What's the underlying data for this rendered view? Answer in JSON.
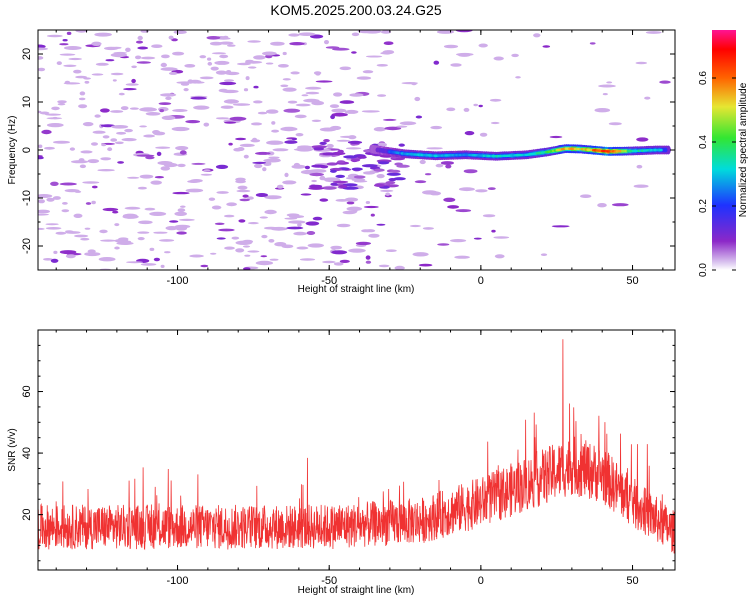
{
  "title": "KOM5.2025.200.03.24.G25",
  "chart_data": [
    {
      "type": "heatmap",
      "xlabel": "Height of straight line (km)",
      "ylabel": "Frequency (Hz)",
      "xlim": [
        -146,
        64
      ],
      "ylim": [
        -25,
        25
      ],
      "xticks": [
        -100,
        -50,
        0,
        50
      ],
      "yticks": [
        -20,
        -10,
        0,
        10,
        20
      ],
      "colorbar": {
        "label": "Normalized spectral amplitude",
        "range": [
          0,
          0.75
        ],
        "ticks": [
          0.0,
          0.2,
          0.4,
          0.6
        ],
        "tick_labels": [
          "0.0",
          "0.2",
          "0.4",
          "0.6"
        ],
        "colors": [
          "#dcc8f0",
          "#8c28c8",
          "#1e32ff",
          "#00dcdc",
          "#32e632",
          "#e6e632",
          "#ff6400",
          "#ff0000",
          "#ff1493"
        ]
      },
      "band": {
        "description_points": [
          {
            "x": -36,
            "f": 0.2,
            "amp": 0.16
          },
          {
            "x": -25,
            "f": -0.8,
            "amp": 0.28
          },
          {
            "x": -15,
            "f": -1.2,
            "amp": 0.3
          },
          {
            "x": -5,
            "f": -1.0,
            "amp": 0.26
          },
          {
            "x": 5,
            "f": -1.3,
            "amp": 0.33
          },
          {
            "x": 15,
            "f": -1.0,
            "amp": 0.3
          },
          {
            "x": 22,
            "f": -0.4,
            "amp": 0.38
          },
          {
            "x": 28,
            "f": 0.3,
            "amp": 0.55
          },
          {
            "x": 33,
            "f": 0.2,
            "amp": 0.5
          },
          {
            "x": 42,
            "f": -0.3,
            "amp": 0.7
          },
          {
            "x": 50,
            "f": -0.2,
            "amp": 0.35
          },
          {
            "x": 58,
            "f": 0.0,
            "amp": 0.3
          }
        ],
        "noise_spread_khz_note": ""
      },
      "noise_level": 0.1
    },
    {
      "type": "line",
      "xlabel": "Height of straight line (km)",
      "ylabel": "SNR (v/v)",
      "xlim": [
        -146,
        64
      ],
      "ylim": [
        2,
        80
      ],
      "xticks": [
        -100,
        -50,
        0,
        50
      ],
      "yticks": [
        20,
        40,
        60
      ],
      "color": "#f03232",
      "trend": [
        {
          "x": -146,
          "y": 16
        },
        {
          "x": -100,
          "y": 16
        },
        {
          "x": -50,
          "y": 16
        },
        {
          "x": -20,
          "y": 18
        },
        {
          "x": 0,
          "y": 24
        },
        {
          "x": 15,
          "y": 30
        },
        {
          "x": 30,
          "y": 36
        },
        {
          "x": 40,
          "y": 33
        },
        {
          "x": 50,
          "y": 24
        },
        {
          "x": 64,
          "y": 14
        }
      ],
      "fluctuation_range": 9,
      "peak": {
        "x": 27,
        "y": 77
      }
    }
  ]
}
